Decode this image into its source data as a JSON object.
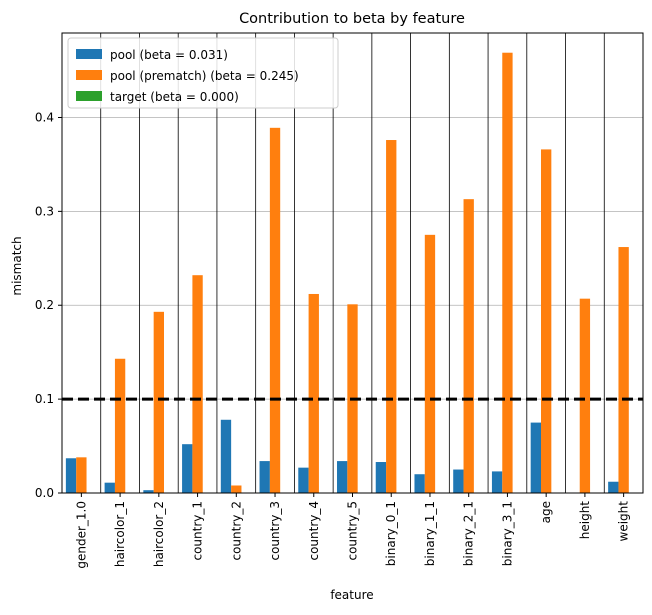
{
  "chart_data": {
    "type": "bar",
    "title": "Contribution to beta by feature",
    "xlabel": "feature",
    "ylabel": "mismatch",
    "ylim": [
      0,
      0.49
    ],
    "yticks": [
      0.0,
      0.1,
      0.2,
      0.3,
      0.4
    ],
    "ytick_labels": [
      "0.0",
      "0.1",
      "0.2",
      "0.3",
      "0.4"
    ],
    "grid": "horizontal",
    "legend_position": "top-left",
    "reference_line": {
      "y": 0.1,
      "style": "dashed",
      "color": "#000000"
    },
    "categories": [
      "gender_1.0",
      "haircolor_1",
      "haircolor_2",
      "country_1",
      "country_2",
      "country_3",
      "country_4",
      "country_5",
      "binary_0_1",
      "binary_1_1",
      "binary_2_1",
      "binary_3_1",
      "age",
      "height",
      "weight"
    ],
    "series": [
      {
        "name": "pool (beta = 0.031)",
        "color": "#1f77b4",
        "values": [
          0.037,
          0.011,
          0.003,
          0.052,
          0.078,
          0.034,
          0.027,
          0.034,
          0.033,
          0.02,
          0.025,
          0.023,
          0.075,
          0.0,
          0.012
        ]
      },
      {
        "name": "pool (prematch) (beta = 0.245)",
        "color": "#ff7f0e",
        "values": [
          0.038,
          0.143,
          0.193,
          0.232,
          0.008,
          0.389,
          0.212,
          0.201,
          0.376,
          0.275,
          0.313,
          0.469,
          0.366,
          0.207,
          0.262
        ]
      },
      {
        "name": "target (beta = 0.000)",
        "color": "#2ca02c",
        "values": [
          0,
          0,
          0,
          0,
          0,
          0,
          0,
          0,
          0,
          0,
          0,
          0,
          0,
          0,
          0
        ]
      }
    ]
  }
}
